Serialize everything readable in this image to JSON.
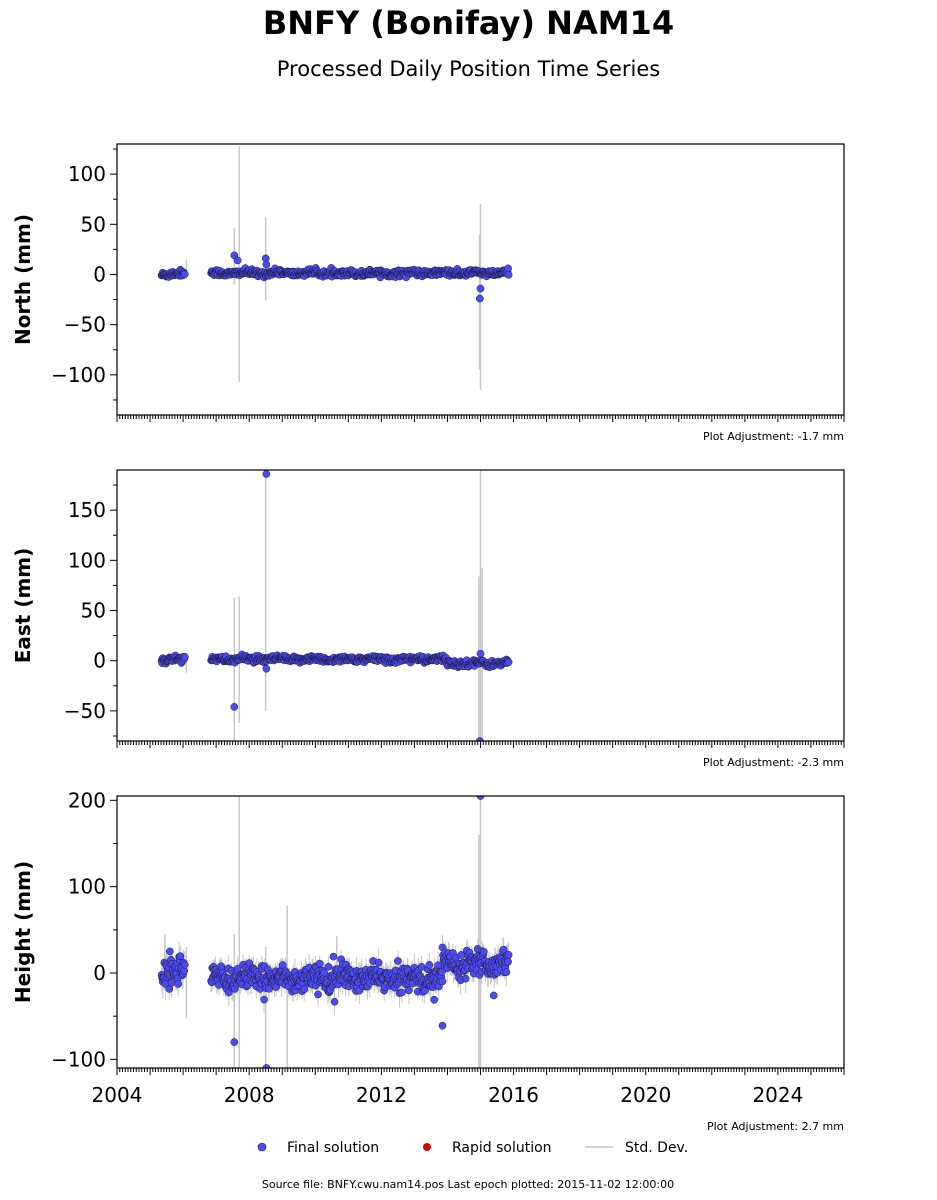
{
  "header": {
    "title": "BNFY (Bonifay) NAM14",
    "subtitle": "Processed Daily Position Time Series"
  },
  "footer": {
    "source": "Source file: BNFY.cwu.nam14.pos  Last epoch plotted: 2015-11-02 12:00:00"
  },
  "legend": {
    "final": "Final solution",
    "rapid": "Rapid solution",
    "stddev": "Std. Dev."
  },
  "colors": {
    "final": "#4b4bf0",
    "rapid": "#e00000",
    "stddev": "#c8c8c8",
    "marker_edge": "#1a1a40"
  },
  "chart_data": [
    {
      "type": "scatter",
      "ylabel": "North (mm)",
      "adjustment": "Plot Adjustment: -1.7 mm",
      "xlim": [
        2004.0,
        2026.0
      ],
      "ylim": [
        -140,
        130
      ],
      "yticks": [
        100,
        50,
        0,
        -50,
        -100
      ],
      "segments": [
        {
          "x0": 2005.35,
          "x1": 2006.05,
          "mean": 0.5,
          "sd": 1.6,
          "err": 3
        },
        {
          "x0": 2006.85,
          "x1": 2015.85,
          "mean": 1.5,
          "sd": 1.5,
          "err": 3
        }
      ],
      "outliers": [
        {
          "x": 2007.55,
          "y": 19,
          "err": 0
        },
        {
          "x": 2007.65,
          "y": 14,
          "err": 0
        },
        {
          "x": 2008.5,
          "y": 16,
          "err": 0
        },
        {
          "x": 2008.52,
          "y": 10,
          "err": 0
        },
        {
          "x": 2015.0,
          "y": -14,
          "err": 0
        },
        {
          "x": 2014.98,
          "y": -24,
          "err": 0
        }
      ],
      "errorbars": [
        {
          "x": 2007.7,
          "lo": -107,
          "hi": 128
        },
        {
          "x": 2007.55,
          "lo": -10,
          "hi": 46
        },
        {
          "x": 2008.5,
          "lo": -26,
          "hi": 57
        },
        {
          "x": 2015.0,
          "lo": -115,
          "hi": 70
        },
        {
          "x": 2014.97,
          "lo": -95,
          "hi": 40
        },
        {
          "x": 2006.1,
          "lo": -4,
          "hi": 15
        }
      ]
    },
    {
      "type": "scatter",
      "ylabel": "East (mm)",
      "adjustment": "Plot Adjustment: -2.3 mm",
      "xlim": [
        2004.0,
        2026.0
      ],
      "ylim": [
        -80,
        190
      ],
      "yticks": [
        150,
        100,
        50,
        0,
        -50
      ],
      "segments": [
        {
          "x0": 2005.35,
          "x1": 2006.05,
          "mean": 1.5,
          "sd": 1.6,
          "err": 3
        },
        {
          "x0": 2006.85,
          "x1": 2013.95,
          "mean": 1.5,
          "sd": 1.5,
          "err": 3
        },
        {
          "x0": 2013.95,
          "x1": 2015.85,
          "mean": -2.5,
          "sd": 1.6,
          "err": 3
        }
      ],
      "outliers": [
        {
          "x": 2008.52,
          "y": 186,
          "err": 0
        },
        {
          "x": 2007.55,
          "y": -46,
          "err": 0
        },
        {
          "x": 2008.52,
          "y": -8,
          "err": 0
        },
        {
          "x": 2015.0,
          "y": 7,
          "err": 0
        },
        {
          "x": 2014.98,
          "y": -80,
          "err": 0
        }
      ],
      "errorbars": [
        {
          "x": 2007.55,
          "lo": -80,
          "hi": 63
        },
        {
          "x": 2007.7,
          "lo": -62,
          "hi": 64
        },
        {
          "x": 2008.5,
          "lo": -50,
          "hi": 186
        },
        {
          "x": 2015.0,
          "lo": -80,
          "hi": 190
        },
        {
          "x": 2014.95,
          "lo": -80,
          "hi": 84
        },
        {
          "x": 2015.05,
          "lo": -80,
          "hi": 92
        },
        {
          "x": 2006.1,
          "lo": -12,
          "hi": 8
        }
      ]
    },
    {
      "type": "scatter",
      "ylabel": "Height (mm)",
      "adjustment": "Plot Adjustment: 2.7 mm",
      "xlim": [
        2004.0,
        2026.0
      ],
      "ylim": [
        -110,
        205
      ],
      "yticks": [
        200,
        100,
        0,
        -100
      ],
      "segments": [
        {
          "x0": 2005.35,
          "x1": 2006.05,
          "mean": 2,
          "sd": 8,
          "err": 14
        },
        {
          "x0": 2006.85,
          "x1": 2013.85,
          "mean": -6,
          "sd": 7,
          "err": 12
        },
        {
          "x0": 2013.85,
          "x1": 2015.85,
          "mean": 13,
          "sd": 7,
          "err": 12
        }
      ],
      "outliers": [
        {
          "x": 2005.6,
          "y": 25,
          "err": 0
        },
        {
          "x": 2007.55,
          "y": -80,
          "err": 0
        },
        {
          "x": 2008.52,
          "y": -110,
          "err": 0
        },
        {
          "x": 2010.55,
          "y": 19,
          "err": 0
        },
        {
          "x": 2013.6,
          "y": -31,
          "err": 0
        },
        {
          "x": 2013.85,
          "y": -61,
          "err": 0
        },
        {
          "x": 2015.0,
          "y": 205,
          "err": 0
        },
        {
          "x": 2015.4,
          "y": -26,
          "err": 0
        }
      ],
      "errorbars": [
        {
          "x": 2007.55,
          "lo": -110,
          "hi": 45
        },
        {
          "x": 2007.7,
          "lo": -110,
          "hi": 205
        },
        {
          "x": 2008.5,
          "lo": -110,
          "hi": 30
        },
        {
          "x": 2009.15,
          "lo": -110,
          "hi": 78
        },
        {
          "x": 2015.0,
          "lo": -110,
          "hi": 205
        },
        {
          "x": 2014.95,
          "lo": -110,
          "hi": 160
        },
        {
          "x": 2005.45,
          "lo": -20,
          "hi": 45
        },
        {
          "x": 2006.1,
          "lo": -52,
          "hi": 30
        },
        {
          "x": 2010.65,
          "lo": 0,
          "hi": 43
        }
      ]
    }
  ],
  "xaxis": {
    "ticks": [
      "2004",
      "2008",
      "2012",
      "2016",
      "2020",
      "2024"
    ],
    "values": [
      2004,
      2008,
      2012,
      2016,
      2020,
      2024
    ]
  }
}
